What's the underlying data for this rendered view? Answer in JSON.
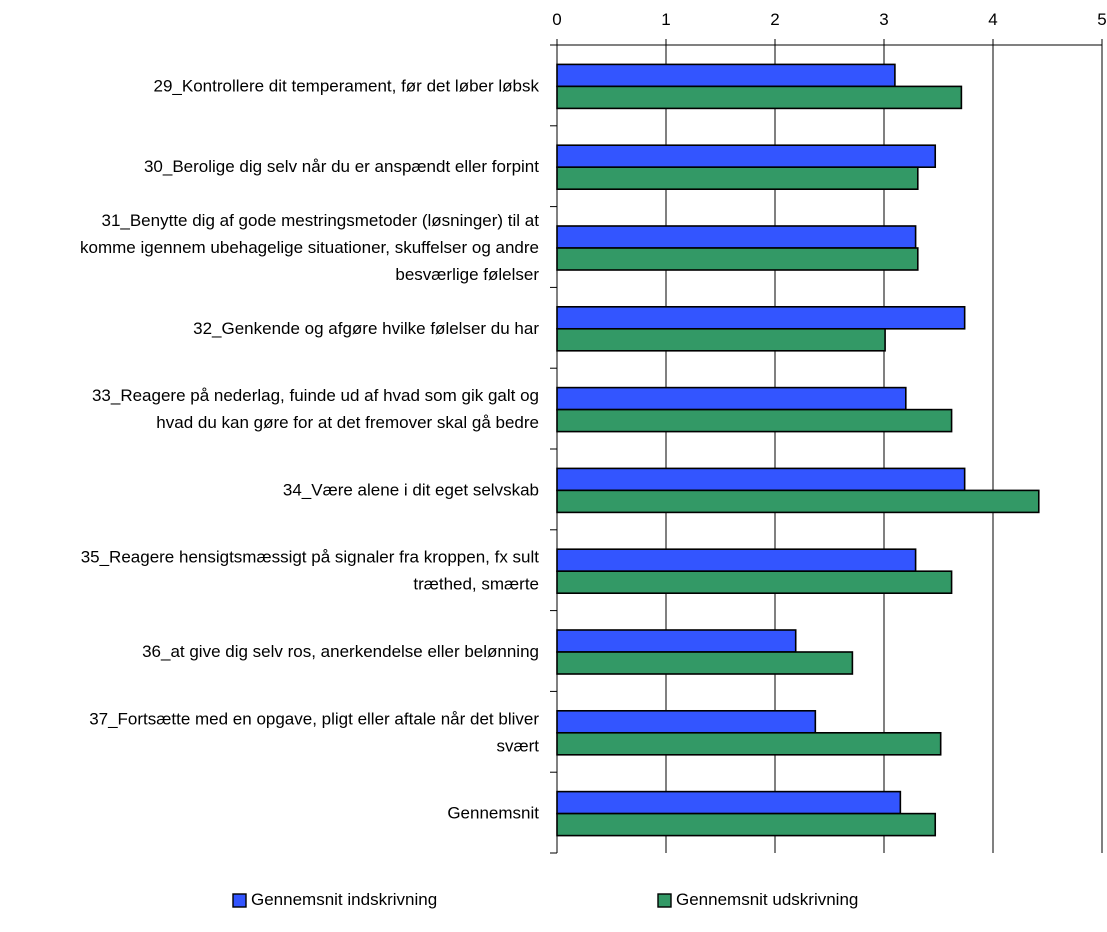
{
  "chart_data": {
    "type": "bar",
    "orientation": "horizontal",
    "xlim": [
      0,
      5
    ],
    "x_ticks": [
      "0",
      "1",
      "2",
      "3",
      "4",
      "5"
    ],
    "x_axis_position": "top",
    "grid": true,
    "legend_position": "bottom",
    "categories": [
      [
        "29_Kontrollere dit temperament, før det løber løbsk"
      ],
      [
        "30_Berolige dig selv når du er anspændt eller forpint"
      ],
      [
        "31_Benytte dig af gode mestringsmetoder (løsninger) til at",
        "komme igennem ubehagelige situationer, skuffelser og andre",
        "besværlige følelser"
      ],
      [
        "32_Genkende og afgøre hvilke følelser du har"
      ],
      [
        "33_Reagere på nederlag, fuinde ud af hvad som gik galt og",
        "hvad du kan gøre for at det fremover skal gå bedre"
      ],
      [
        "34_Være alene i dit eget selvskab"
      ],
      [
        "35_Reagere hensigtsmæssigt på signaler fra kroppen, fx sult",
        "træthed, smærte"
      ],
      [
        "36_at give dig selv ros, anerkendelse eller belønning"
      ],
      [
        "37_Fortsætte med en opgave, pligt eller aftale når det bliver",
        "svært"
      ],
      [
        "Gennemsnit"
      ]
    ],
    "series": [
      {
        "name": "Gennemsnit indskrivning",
        "color": "#3355ff",
        "values": [
          3.1,
          3.47,
          3.29,
          3.74,
          3.2,
          3.74,
          3.29,
          2.19,
          2.37,
          3.15
        ]
      },
      {
        "name": "Gennemsnit udskrivning",
        "color": "#339966",
        "values": [
          3.71,
          3.31,
          3.31,
          3.01,
          3.62,
          4.42,
          3.62,
          2.71,
          3.52,
          3.47
        ]
      }
    ]
  }
}
